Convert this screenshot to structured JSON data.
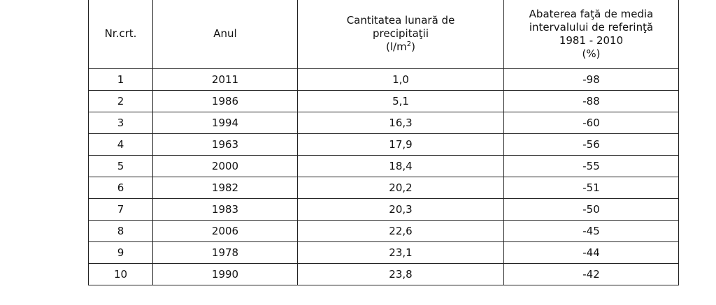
{
  "table": {
    "header": [
      {
        "lines": [
          "Nr.crt."
        ]
      },
      {
        "lines": [
          "Anul"
        ]
      },
      {
        "lines": [
          "Cantitatea lunară de",
          "precipitaţii"
        ],
        "unit_prefix": "(l/m",
        "unit_sup": "2",
        "unit_suffix": ")"
      },
      {
        "lines": [
          "Abaterea faţă de media",
          "intervalului de referinţă",
          "1981 - 2010",
          "(%)"
        ]
      }
    ],
    "rows": [
      [
        1,
        2011,
        "1,0",
        -98
      ],
      [
        2,
        1986,
        "5,1",
        -88
      ],
      [
        3,
        1994,
        "16,3",
        -60
      ],
      [
        4,
        1963,
        "17,9",
        -56
      ],
      [
        5,
        2000,
        "18,4",
        -55
      ],
      [
        6,
        1982,
        "20,2",
        -51
      ],
      [
        7,
        1983,
        "20,3",
        -50
      ],
      [
        8,
        2006,
        "22,6",
        -45
      ],
      [
        9,
        1978,
        "23,1",
        -44
      ],
      [
        10,
        1990,
        "23,8",
        -42
      ]
    ]
  }
}
